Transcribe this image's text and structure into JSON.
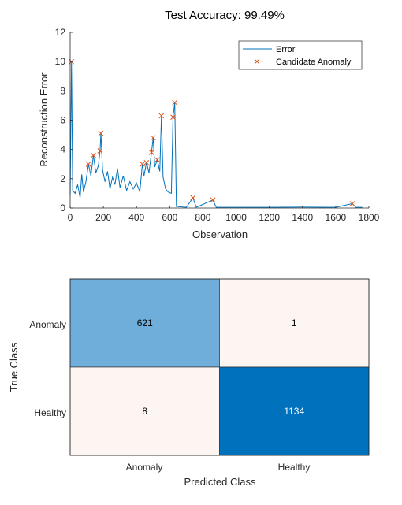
{
  "chart_data": [
    {
      "type": "line",
      "title": "Test Accuracy: 99.49%",
      "xlabel": "Observation",
      "ylabel": "Reconstruction Error",
      "xlim": [
        0,
        1800
      ],
      "ylim": [
        0,
        12
      ],
      "xticks": [
        0,
        200,
        400,
        600,
        800,
        1000,
        1200,
        1400,
        1600,
        1800
      ],
      "yticks": [
        0,
        2,
        4,
        6,
        8,
        10,
        12
      ],
      "grid": false,
      "legend_position": "top-right",
      "series": [
        {
          "name": "Error",
          "style": "line",
          "color": "#0072BD",
          "description_points": [
            [
              0,
              0.9
            ],
            [
              8,
              10.0
            ],
            [
              15,
              1.2
            ],
            [
              30,
              1.0
            ],
            [
              45,
              1.6
            ],
            [
              60,
              0.7
            ],
            [
              70,
              2.3
            ],
            [
              80,
              1.1
            ],
            [
              95,
              1.8
            ],
            [
              110,
              3.0
            ],
            [
              125,
              2.2
            ],
            [
              140,
              3.6
            ],
            [
              155,
              2.4
            ],
            [
              170,
              2.9
            ],
            [
              180,
              3.9
            ],
            [
              185,
              5.1
            ],
            [
              195,
              2.6
            ],
            [
              210,
              1.8
            ],
            [
              225,
              2.5
            ],
            [
              240,
              1.3
            ],
            [
              255,
              2.1
            ],
            [
              270,
              1.6
            ],
            [
              285,
              2.7
            ],
            [
              300,
              1.4
            ],
            [
              320,
              2.2
            ],
            [
              340,
              1.2
            ],
            [
              360,
              1.8
            ],
            [
              380,
              1.3
            ],
            [
              400,
              1.7
            ],
            [
              420,
              1.1
            ],
            [
              435,
              3.0
            ],
            [
              445,
              2.2
            ],
            [
              460,
              3.1
            ],
            [
              475,
              2.4
            ],
            [
              490,
              3.8
            ],
            [
              500,
              4.8
            ],
            [
              510,
              2.8
            ],
            [
              525,
              3.3
            ],
            [
              540,
              2.5
            ],
            [
              550,
              6.3
            ],
            [
              560,
              2.1
            ],
            [
              575,
              1.3
            ],
            [
              590,
              1.1
            ],
            [
              610,
              1.0
            ],
            [
              620,
              6.2
            ],
            [
              630,
              7.2
            ],
            [
              640,
              0.1
            ],
            [
              700,
              0.05
            ],
            [
              740,
              0.7
            ],
            [
              760,
              0.05
            ],
            [
              860,
              0.55
            ],
            [
              880,
              0.05
            ],
            [
              1000,
              0.05
            ],
            [
              1200,
              0.05
            ],
            [
              1400,
              0.06
            ],
            [
              1600,
              0.05
            ],
            [
              1700,
              0.3
            ],
            [
              1720,
              0.05
            ],
            [
              1760,
              0.05
            ]
          ]
        },
        {
          "name": "Candidate Anomaly",
          "style": "marker-x",
          "color": "#D95319",
          "description_points": [
            [
              8,
              10.0
            ],
            [
              185,
              5.1
            ],
            [
              180,
              3.9
            ],
            [
              140,
              3.6
            ],
            [
              110,
              3.0
            ],
            [
              500,
              4.8
            ],
            [
              490,
              3.8
            ],
            [
              550,
              6.3
            ],
            [
              620,
              6.2
            ],
            [
              630,
              7.2
            ],
            [
              460,
              3.1
            ],
            [
              435,
              3.0
            ],
            [
              525,
              3.3
            ],
            [
              740,
              0.7
            ],
            [
              860,
              0.55
            ],
            [
              1700,
              0.3
            ]
          ]
        }
      ]
    },
    {
      "type": "heatmap",
      "subtype": "confusion-matrix",
      "xlabel": "Predicted Class",
      "ylabel": "True Class",
      "x_categories": [
        "Anomaly",
        "Healthy"
      ],
      "y_categories": [
        "Anomaly",
        "Healthy"
      ],
      "values": [
        [
          621,
          1
        ],
        [
          8,
          1134
        ]
      ],
      "cell_colors": [
        [
          "#6FAEDA",
          "#FDF5F2"
        ],
        [
          "#FDF5F2",
          "#0072BD"
        ]
      ],
      "text_colors": [
        [
          "#000000",
          "#000000"
        ],
        [
          "#000000",
          "#ffffff"
        ]
      ]
    }
  ]
}
